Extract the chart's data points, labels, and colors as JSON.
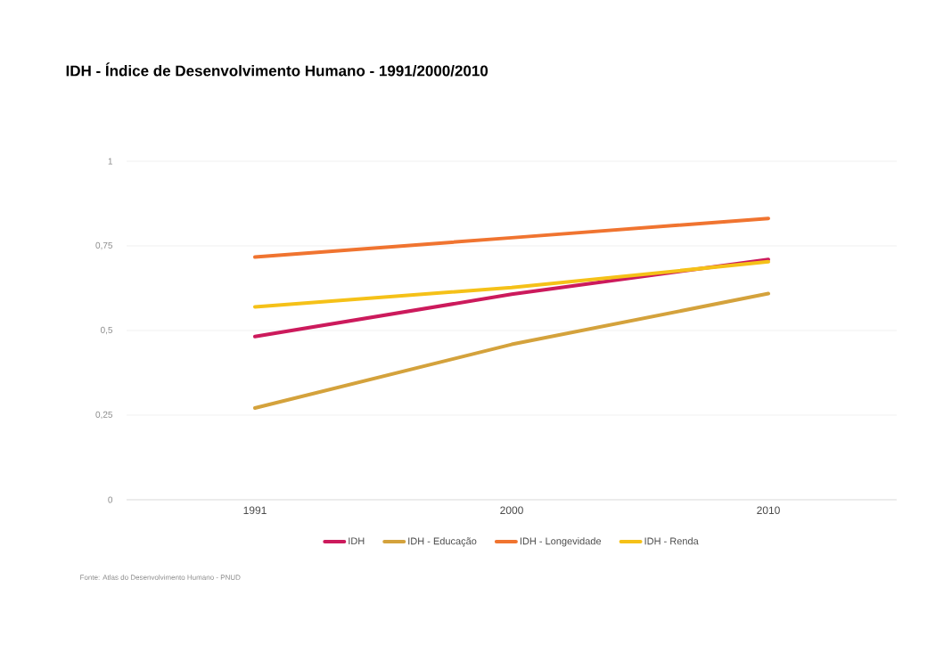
{
  "chart_data": {
    "type": "line",
    "title": "IDH - Índice de Desenvolvimento Humano - 1991/2000/2010",
    "categories": [
      "1991",
      "2000",
      "2010"
    ],
    "series": [
      {
        "name": "IDH",
        "color": "#cc1a5c",
        "values": [
          0.482,
          0.607,
          0.71
        ]
      },
      {
        "name": "IDH - Educação",
        "color": "#d4a23c",
        "values": [
          0.271,
          0.459,
          0.609
        ]
      },
      {
        "name": "IDH - Longevidade",
        "color": "#f07430",
        "values": [
          0.717,
          0.774,
          0.831
        ]
      },
      {
        "name": "IDH - Renda",
        "color": "#f5c118",
        "values": [
          0.57,
          0.627,
          0.703
        ]
      }
    ],
    "ylim": [
      0,
      1
    ],
    "yticks": [
      0,
      {
        "value": 0.25,
        "label": "0,25"
      },
      {
        "value": 0.5,
        "label": "0,5"
      },
      {
        "value": 0.75,
        "label": "0,75"
      },
      1
    ],
    "grid": "y",
    "legend": "bottom",
    "marker": "none",
    "line_style": "solid",
    "annotations": [
      "Fonte: Atlas do Desenvolvimento Humano - PNUD"
    ]
  }
}
